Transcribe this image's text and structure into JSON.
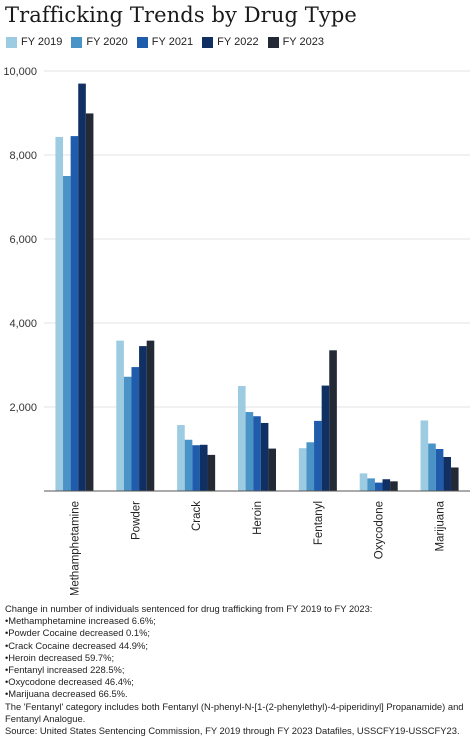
{
  "chart_data": {
    "type": "bar",
    "title": "Trafficking Trends by Drug Type",
    "categories": [
      "Methamphetamine",
      "Powder",
      "Crack",
      "Heroin",
      "Fentanyl",
      "Oxycodone",
      "Marijuana"
    ],
    "series": [
      {
        "name": "FY 2019",
        "color": "#9dcbe2",
        "values": [
          8430,
          3580,
          1570,
          2500,
          1020,
          420,
          1680
        ]
      },
      {
        "name": "FY 2020",
        "color": "#4a93c6",
        "values": [
          7500,
          2720,
          1220,
          1880,
          1160,
          300,
          1130
        ]
      },
      {
        "name": "FY 2021",
        "color": "#1f5cab",
        "values": [
          8450,
          2950,
          1090,
          1780,
          1670,
          200,
          1000
        ]
      },
      {
        "name": "FY 2022",
        "color": "#102f63",
        "values": [
          9700,
          3450,
          1100,
          1620,
          2510,
          280,
          810
        ]
      },
      {
        "name": "FY 2023",
        "color": "#232a36",
        "values": [
          8990,
          3580,
          860,
          1010,
          3350,
          230,
          560
        ]
      }
    ],
    "ylim": [
      0,
      10000
    ],
    "yticks": [
      0,
      2000,
      4000,
      6000,
      8000,
      10000
    ],
    "ytick_labels": [
      "",
      "2,000",
      "4,000",
      "6,000",
      "8,000",
      "10,000"
    ],
    "grid": true,
    "legend_placement": "top-left"
  },
  "notes": {
    "heading": "Change in number of individuals sentenced for drug trafficking from FY 2019 to FY 2023:",
    "items": [
      "•Methamphetamine increased 6.6%;",
      "•Powder Cocaine decreased 0.1%;",
      "•Crack Cocaine decreased 44.9%;",
      "•Heroin decreased 59.7%;",
      "•Fentanyl increased 228.5%;",
      "•Oxycodone decreased 46.4%;",
      "•Marijuana decreased 66.5%."
    ],
    "fentanyl_note": "The 'Fentanyl' category includes both Fentanyl (N-phenyl-N-[1-(2-phenylethyl)-4-piperidinyl] Propanamide) and Fentanyl Analogue.",
    "source": "Source: United States Sentencing Commission, FY 2019 through FY 2023 Datafiles, USSCFY19-USSCFY23."
  }
}
